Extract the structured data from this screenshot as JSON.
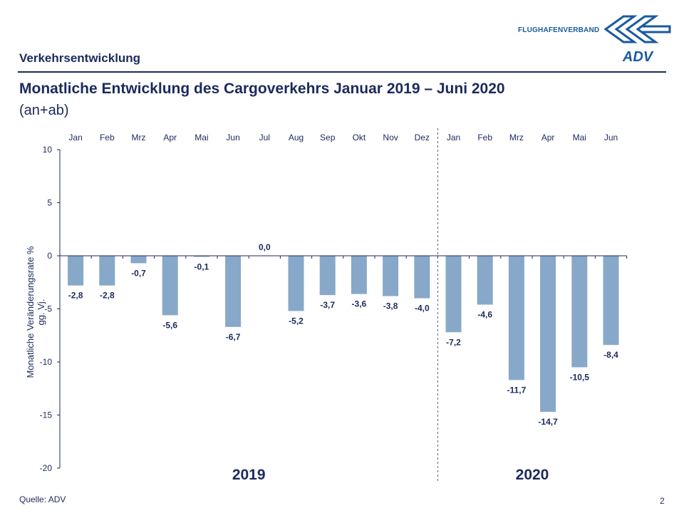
{
  "header": {
    "section": "Verkehrsentwicklung",
    "logo_text": "FLUGHAFENVERBAND",
    "logo_mark": "ADV"
  },
  "title": "Monatliche Entwicklung des Cargoverkehrs Januar 2019 – Juni 2020",
  "subtitle": "(an+ab)",
  "footer": {
    "source": "Quelle: ADV",
    "page": "2"
  },
  "colors": {
    "bar": "#87a8c9",
    "text": "#1c2a5c",
    "logo": "#1a5a9e"
  },
  "chart_data": {
    "type": "bar",
    "categories": [
      "Jan",
      "Feb",
      "Mrz",
      "Apr",
      "Mai",
      "Jun",
      "Jul",
      "Aug",
      "Sep",
      "Okt",
      "Nov",
      "Dez",
      "Jan",
      "Feb",
      "Mrz",
      "Apr",
      "Mai",
      "Jun"
    ],
    "values": [
      -2.8,
      -2.8,
      -0.7,
      -5.6,
      -0.1,
      -6.7,
      0.0,
      -5.2,
      -3.7,
      -3.6,
      -3.8,
      -4.0,
      -7.2,
      -4.6,
      -11.7,
      -14.7,
      -10.5,
      -8.4
    ],
    "data_labels": [
      "-2,8",
      "-2,8",
      "-0,7",
      "-5,6",
      "-0,1",
      "-6,7",
      "0,0",
      "-5,2",
      "-3,7",
      "-3,6",
      "-3,8",
      "-4,0",
      "-7,2",
      "-4,6",
      "-11,7",
      "-14,7",
      "-10,5",
      "-8,4"
    ],
    "groups": [
      {
        "label": "2019",
        "count": 12
      },
      {
        "label": "2020",
        "count": 6
      }
    ],
    "ylabel": "Monatliche Veränderungsrate % gg. Vj.",
    "ylim": [
      -20,
      10
    ],
    "yticks": [
      10,
      5,
      0,
      -5,
      -10,
      -15,
      -20
    ],
    "grid": false,
    "xaxis_position": "top"
  }
}
